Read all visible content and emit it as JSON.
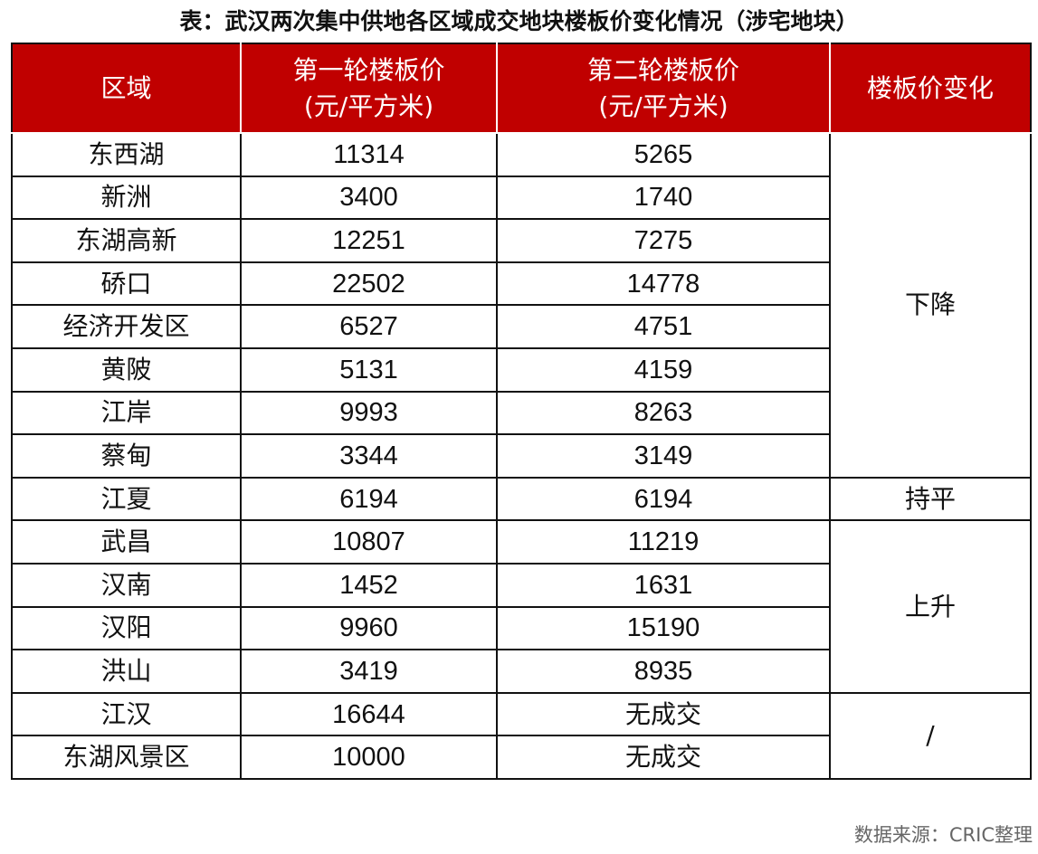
{
  "title": "表：武汉两次集中供地各区域成交地块楼板价变化情况（涉宅地块）",
  "headers": {
    "region": "区域",
    "round1_line1": "第一轮楼板价",
    "round1_line2": "(元/平方米)",
    "round2_line1": "第二轮楼板价",
    "round2_line2": "(元/平方米)",
    "change": "楼板价变化"
  },
  "rows": [
    {
      "region": "东西湖",
      "r1": "11314",
      "r2": "5265"
    },
    {
      "region": "新洲",
      "r1": "3400",
      "r2": "1740"
    },
    {
      "region": "东湖高新",
      "r1": "12251",
      "r2": "7275"
    },
    {
      "region": "硚口",
      "r1": "22502",
      "r2": "14778"
    },
    {
      "region": "经济开发区",
      "r1": "6527",
      "r2": "4751"
    },
    {
      "region": "黄陂",
      "r1": "5131",
      "r2": "4159"
    },
    {
      "region": "江岸",
      "r1": "9993",
      "r2": "8263"
    },
    {
      "region": "蔡甸",
      "r1": "3344",
      "r2": "3149"
    },
    {
      "region": "江夏",
      "r1": "6194",
      "r2": "6194"
    },
    {
      "region": "武昌",
      "r1": "10807",
      "r2": "11219"
    },
    {
      "region": "汉南",
      "r1": "1452",
      "r2": "1631"
    },
    {
      "region": "汉阳",
      "r1": "9960",
      "r2": "15190"
    },
    {
      "region": "洪山",
      "r1": "3419",
      "r2": "8935"
    },
    {
      "region": "江汉",
      "r1": "16644",
      "r2": "无成交"
    },
    {
      "region": "东湖风景区",
      "r1": "10000",
      "r2": "无成交"
    }
  ],
  "changes": {
    "down": "下降",
    "flat": "持平",
    "up": "上升",
    "none": "/"
  },
  "source": "数据来源：CRIC整理"
}
